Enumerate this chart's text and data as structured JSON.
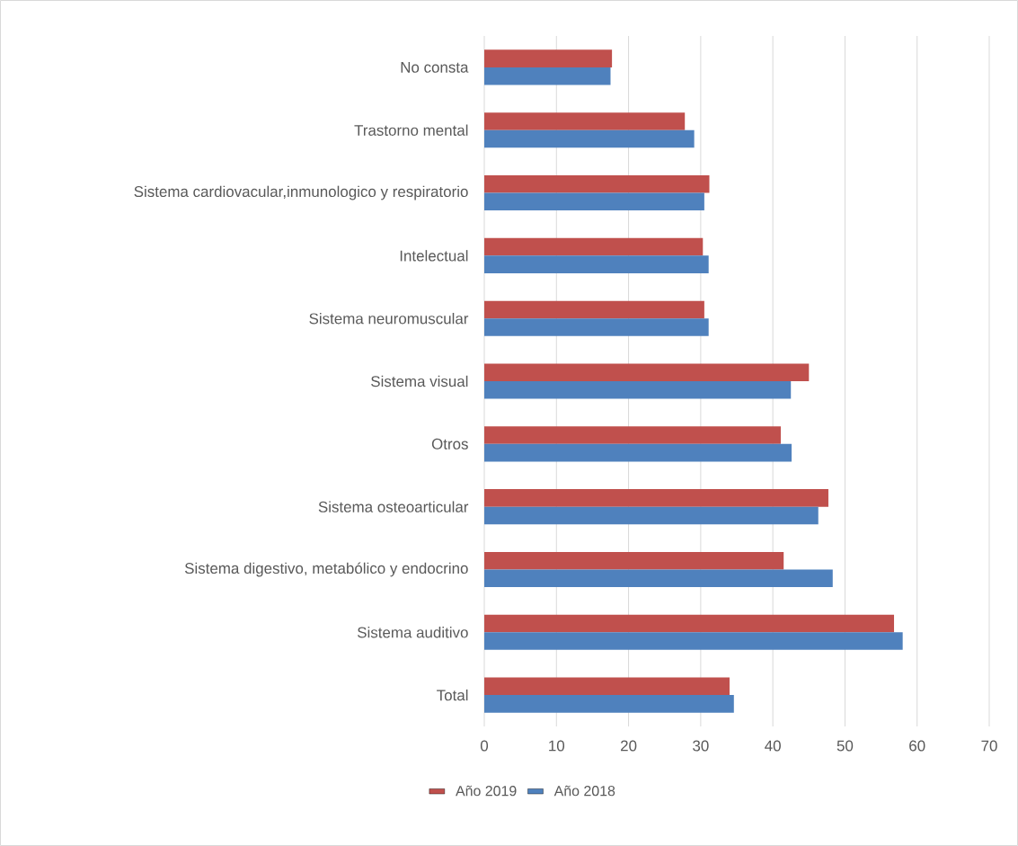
{
  "chart_data": {
    "type": "bar",
    "orientation": "horizontal",
    "categories": [
      "No consta",
      "Trastorno mental",
      "Sistema cardiovacular,inmunologico y respiratorio",
      "Intelectual",
      "Sistema neuromuscular",
      "Sistema visual",
      "Otros",
      "Sistema osteoarticular",
      "Sistema digestivo, metabólico y endocrino",
      "Sistema auditivo",
      "Total"
    ],
    "series": [
      {
        "name": "Año 2019",
        "color": "#c0504d",
        "values": [
          17.7,
          27.8,
          31.2,
          30.3,
          30.5,
          45.0,
          41.1,
          47.7,
          41.5,
          56.8,
          34.0
        ]
      },
      {
        "name": "Año 2018",
        "color": "#4f81bd",
        "values": [
          17.5,
          29.1,
          30.5,
          31.1,
          31.1,
          42.5,
          42.6,
          46.3,
          48.3,
          58.0,
          34.6
        ]
      }
    ],
    "xlim": [
      0,
      70
    ],
    "xticks": [
      0,
      10,
      20,
      30,
      40,
      50,
      60,
      70
    ],
    "grid": "x",
    "legend": "bottom"
  }
}
